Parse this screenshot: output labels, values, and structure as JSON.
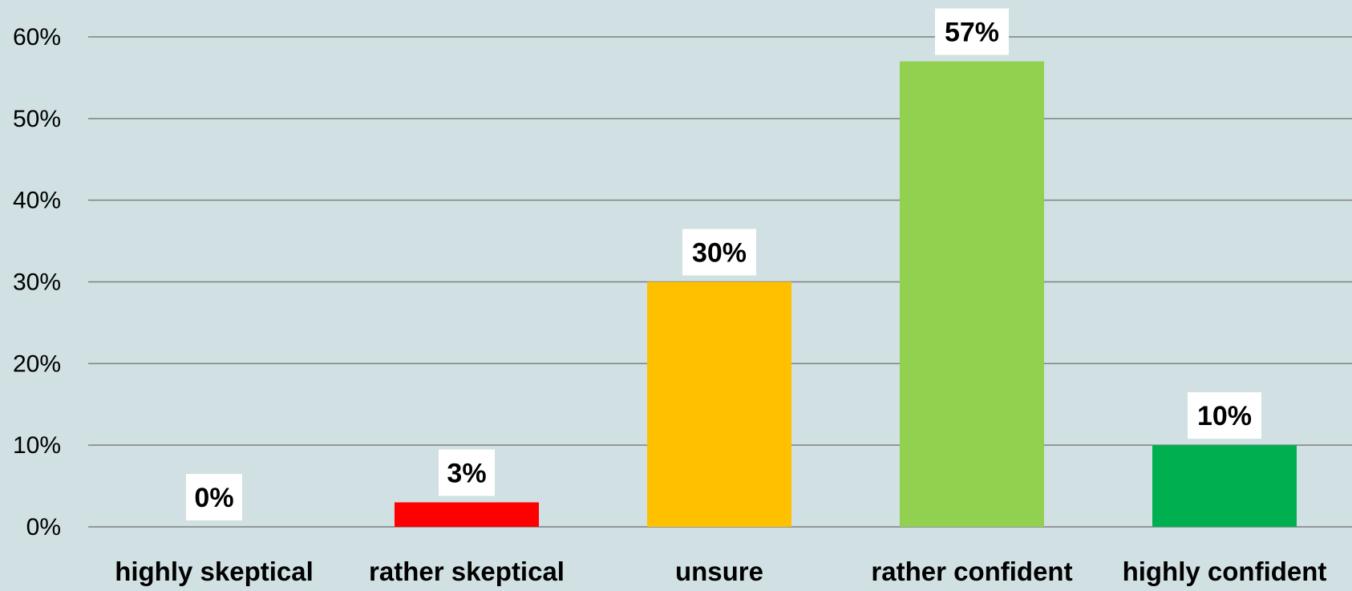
{
  "chart_data": {
    "type": "bar",
    "title": "",
    "xlabel": "",
    "ylabel": "",
    "categories": [
      "highly skeptical",
      "rather skeptical",
      "unsure",
      "rather confident",
      "highly confident"
    ],
    "values": [
      0,
      3,
      30,
      57,
      10
    ],
    "data_labels": [
      "0%",
      "3%",
      "30%",
      "57%",
      "10%"
    ],
    "bar_colors": [
      "#d0e0e3",
      "#ff0000",
      "#ffc000",
      "#92d050",
      "#00b050"
    ],
    "ylim": [
      0,
      60
    ],
    "yticks": [
      0,
      10,
      20,
      30,
      40,
      50,
      60
    ],
    "ytick_labels": [
      "0%",
      "10%",
      "20%",
      "30%",
      "40%",
      "50%",
      "60%"
    ],
    "grid": true,
    "legend": "none",
    "background": "#d0e0e3",
    "gridline_color": "#808080",
    "label_box_color": "#ffffff"
  }
}
